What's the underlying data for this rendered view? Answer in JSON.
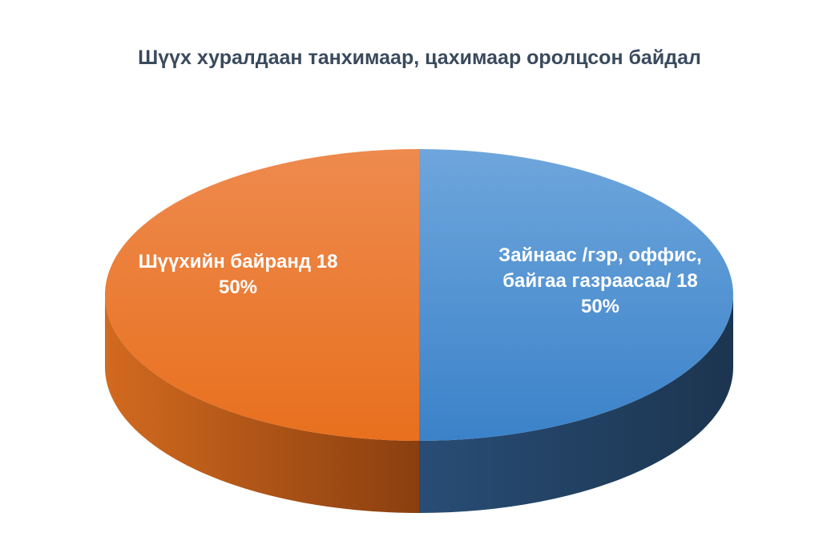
{
  "chart_data": {
    "type": "pie",
    "title": "Шүүх хуралдаан танхимаар, цахимаар оролцсон байдал",
    "style": "3d",
    "slices": [
      {
        "label_lines": [
          "Зайнаас /гэр, оффис,",
          "байгаа газраасаа/ 18"
        ],
        "value": 18,
        "percent_label": "50%",
        "percent": 50,
        "color": "#4a8fd4",
        "side_color": "#22405f"
      },
      {
        "label_lines": [
          "Шүүхийн байранд 18"
        ],
        "value": 18,
        "percent_label": "50%",
        "percent": 50,
        "color": "#ea7a2c",
        "side_color": "#a24c14"
      }
    ]
  }
}
